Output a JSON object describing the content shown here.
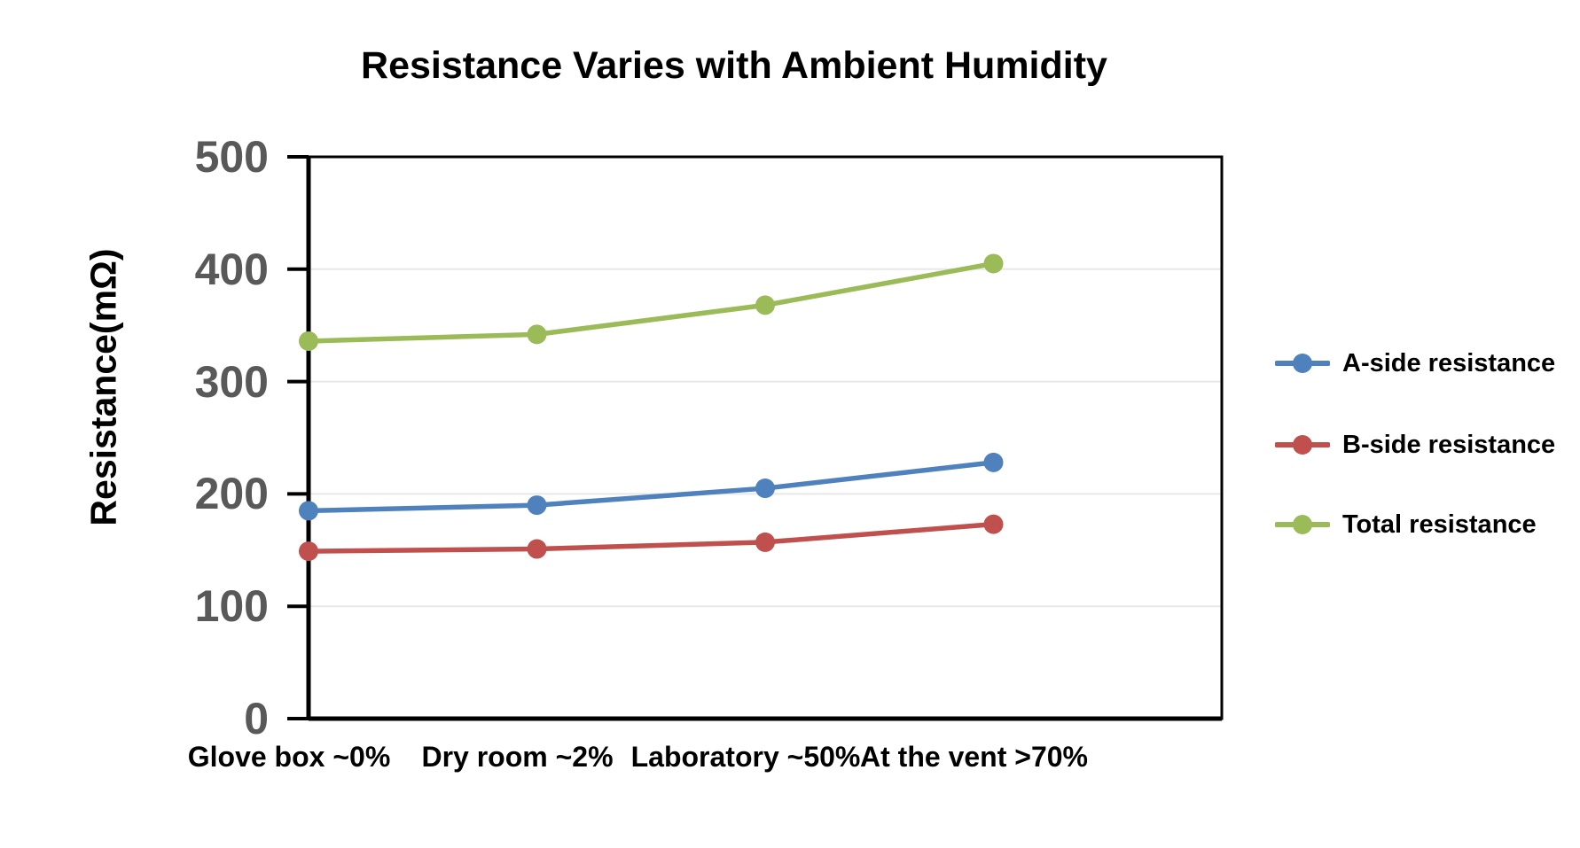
{
  "chart_data": {
    "type": "line",
    "title": "Resistance Varies with Ambient Humidity",
    "ylabel": "Resistance(mΩ)",
    "xlabel": "",
    "categories": [
      "Glove box ~0%",
      "Dry room ~2%",
      "Laboratory ~50%",
      "At the vent >70%"
    ],
    "series": [
      {
        "name": "A-side resistance",
        "color": "#4F81BD",
        "values": [
          185,
          190,
          205,
          228
        ]
      },
      {
        "name": "B-side resistance",
        "color": "#C0504D",
        "values": [
          149,
          151,
          157,
          173
        ]
      },
      {
        "name": "Total resistance",
        "color": "#9BBB59",
        "values": [
          336,
          342,
          368,
          405
        ]
      }
    ],
    "ylim": [
      0,
      500
    ],
    "yticks": [
      0,
      100,
      200,
      300,
      400,
      500
    ],
    "grid": true,
    "legend_position": "right",
    "colors": {
      "title": "#000000",
      "axis": "#000000",
      "tick_label": "#595959",
      "category_label": "#000000",
      "gridline": "#e8e8e8",
      "background": "#ffffff"
    }
  }
}
